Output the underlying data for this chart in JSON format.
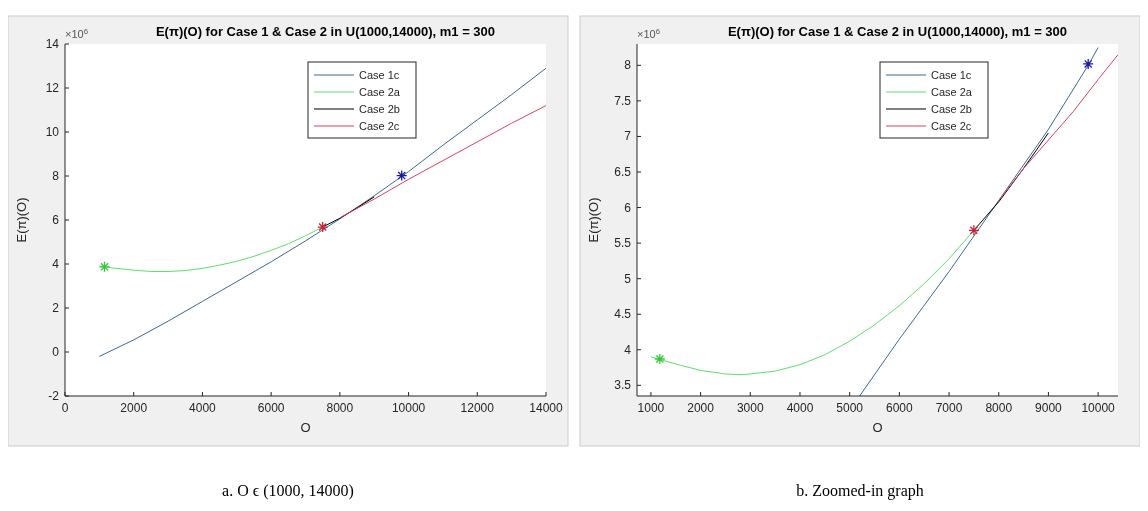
{
  "chart_data": [
    {
      "type": "line",
      "title": "E(π)(O) for Case 1 & Case 2 in U(1000,14000), m1 = 300",
      "xlabel": "O",
      "ylabel": "E(π)(O)",
      "xlim": [
        0,
        14000
      ],
      "xticks": [
        0,
        2000,
        4000,
        6000,
        8000,
        10000,
        12000,
        14000
      ],
      "ylim": [
        -2,
        14
      ],
      "yticks": [
        -2,
        0,
        2,
        4,
        6,
        8,
        10,
        12,
        14
      ],
      "grid": false,
      "legend": "top right",
      "annotations": [
        "×10$^{6}$",
        "a. O ϵ (1000, 14000)"
      ],
      "series": [
        {
          "name": "Case 1c",
          "color": "#3d6a8f",
          "x": [
            1000,
            2000,
            3000,
            4000,
            5000,
            6000,
            7000,
            7500,
            8000,
            9000,
            10000,
            11000,
            12000,
            13000,
            14000
          ],
          "values": [
            -0.2,
            0.55,
            1.4,
            2.3,
            3.2,
            4.1,
            5.05,
            5.55,
            6.05,
            7.1,
            8.2,
            9.4,
            10.55,
            11.7,
            12.9
          ]
        },
        {
          "name": "Case 2a",
          "color": "#5ee06a",
          "x": [
            1000,
            1500,
            2000,
            2500,
            3000,
            3500,
            4000,
            4500,
            5000,
            5500,
            6000,
            6500,
            7000,
            7500
          ],
          "values": [
            3.9,
            3.8,
            3.72,
            3.66,
            3.66,
            3.7,
            3.8,
            3.95,
            4.12,
            4.35,
            4.62,
            4.92,
            5.28,
            5.68
          ]
        },
        {
          "name": "Case 2b",
          "color": "#000000",
          "x": [
            7500,
            8000,
            8500,
            9000
          ],
          "values": [
            5.68,
            6.08,
            6.55,
            7.05
          ]
        },
        {
          "name": "Case 2c",
          "color": "#d9455f",
          "x": [
            8000,
            9000,
            10000,
            11000,
            12000,
            13000,
            14000
          ],
          "values": [
            6.1,
            6.95,
            7.85,
            8.7,
            9.55,
            10.4,
            11.2
          ]
        },
        {
          "type": "scatter",
          "marker": "cross",
          "color": "#33cc33",
          "x": [
            1150
          ],
          "values": [
            3.87
          ]
        },
        {
          "type": "scatter",
          "marker": "cross",
          "color": "#cc2233",
          "x": [
            7500
          ],
          "values": [
            5.68
          ]
        },
        {
          "type": "scatter",
          "marker": "cross",
          "color": "#1a1aa8",
          "x": [
            9800
          ],
          "values": [
            8.02
          ]
        }
      ]
    },
    {
      "type": "line",
      "title": "E(π)(O) for Case 1 & Case 2 in U(1000,14000), m1 = 300",
      "xlabel": "O",
      "ylabel": "E(π)(O)",
      "xlim": [
        720,
        10400
      ],
      "xticks": [
        1000,
        2000,
        3000,
        4000,
        5000,
        6000,
        7000,
        8000,
        9000,
        10000
      ],
      "ylim": [
        3.35,
        8.3
      ],
      "yticks": [
        3.5,
        4,
        4.5,
        5,
        5.5,
        6,
        6.5,
        7,
        7.5,
        8
      ],
      "grid": false,
      "legend": "top right",
      "annotations": [
        "×10$^{6}$",
        "b. Zoomed-in graph"
      ],
      "series": [
        {
          "name": "Case 1c",
          "color": "#3d6a8f",
          "x": [
            5200,
            6000,
            7000,
            7500,
            8000,
            9000,
            9800,
            10000
          ],
          "values": [
            3.35,
            4.15,
            5.1,
            5.6,
            6.1,
            7.1,
            8.0,
            8.25
          ]
        },
        {
          "name": "Case 2a",
          "color": "#5ee06a",
          "x": [
            1000,
            1200,
            1500,
            2000,
            2500,
            2800,
            3000,
            3500,
            4000,
            4500,
            5000,
            5500,
            6000,
            6500,
            7000,
            7500
          ],
          "values": [
            3.9,
            3.86,
            3.8,
            3.71,
            3.66,
            3.65,
            3.66,
            3.7,
            3.79,
            3.93,
            4.12,
            4.35,
            4.62,
            4.93,
            5.28,
            5.68
          ]
        },
        {
          "name": "Case 2b",
          "color": "#000000",
          "x": [
            7500,
            8000,
            8500,
            9000
          ],
          "values": [
            5.68,
            6.08,
            6.55,
            7.05
          ]
        },
        {
          "name": "Case 2c",
          "color": "#d9455f",
          "x": [
            8000,
            8500,
            9000,
            9500,
            10000,
            10400
          ],
          "values": [
            6.1,
            6.55,
            6.95,
            7.35,
            7.8,
            8.15
          ]
        },
        {
          "type": "scatter",
          "marker": "cross",
          "color": "#33cc33",
          "x": [
            1180
          ],
          "values": [
            3.87
          ]
        },
        {
          "type": "scatter",
          "marker": "cross",
          "color": "#cc2233",
          "x": [
            7500
          ],
          "values": [
            5.68
          ]
        },
        {
          "type": "scatter",
          "marker": "cross",
          "color": "#1a1aa8",
          "x": [
            9800
          ],
          "values": [
            8.02
          ]
        }
      ]
    }
  ]
}
